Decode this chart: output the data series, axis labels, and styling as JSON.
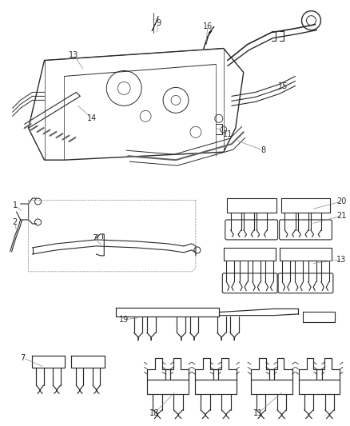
{
  "bg": "#ffffff",
  "lc": "#2a2a2a",
  "gray": "#888888",
  "label_fs": 7,
  "fig_w": 4.39,
  "fig_h": 5.33,
  "dpi": 100
}
